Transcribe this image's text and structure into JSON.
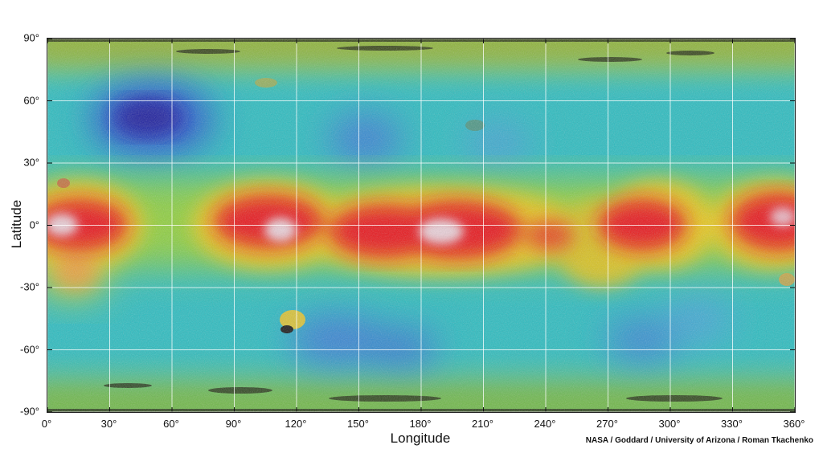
{
  "map": {
    "x_axis_label": "Longitude",
    "y_axis_label": "Latitude",
    "x_ticks": [
      {
        "value": 0,
        "label": "0°"
      },
      {
        "value": 30,
        "label": "30°"
      },
      {
        "value": 60,
        "label": "60°"
      },
      {
        "value": 90,
        "label": "90°"
      },
      {
        "value": 120,
        "label": "120°"
      },
      {
        "value": 150,
        "label": "150°"
      },
      {
        "value": 180,
        "label": "180°"
      },
      {
        "value": 210,
        "label": "210°"
      },
      {
        "value": 240,
        "label": "240°"
      },
      {
        "value": 270,
        "label": "270°"
      },
      {
        "value": 300,
        "label": "300°"
      },
      {
        "value": 330,
        "label": "330°"
      },
      {
        "value": 360,
        "label": "360°"
      }
    ],
    "y_ticks": [
      {
        "value": 90,
        "label": "90°"
      },
      {
        "value": 60,
        "label": "60°"
      },
      {
        "value": 30,
        "label": "30°"
      },
      {
        "value": 0,
        "label": "0°"
      },
      {
        "value": -30,
        "label": "-30°"
      },
      {
        "value": -60,
        "label": "-60°"
      },
      {
        "value": -90,
        "label": "-90°"
      }
    ],
    "lon_range": [
      0,
      360
    ],
    "lat_range": [
      -90,
      90
    ],
    "grid": true,
    "credit": "NASA / Goddard / University of Arizona / Roman Tkachenko",
    "colors": {
      "high": "#e8141c",
      "peak": "#e9d0d8",
      "mid_high": "#e8c81a",
      "mid": "#8fcf3c",
      "base": "#2bbcc0",
      "low": "#2f6fd0",
      "lowest": "#1a1a9c",
      "polar": "#9aa82a"
    }
  }
}
